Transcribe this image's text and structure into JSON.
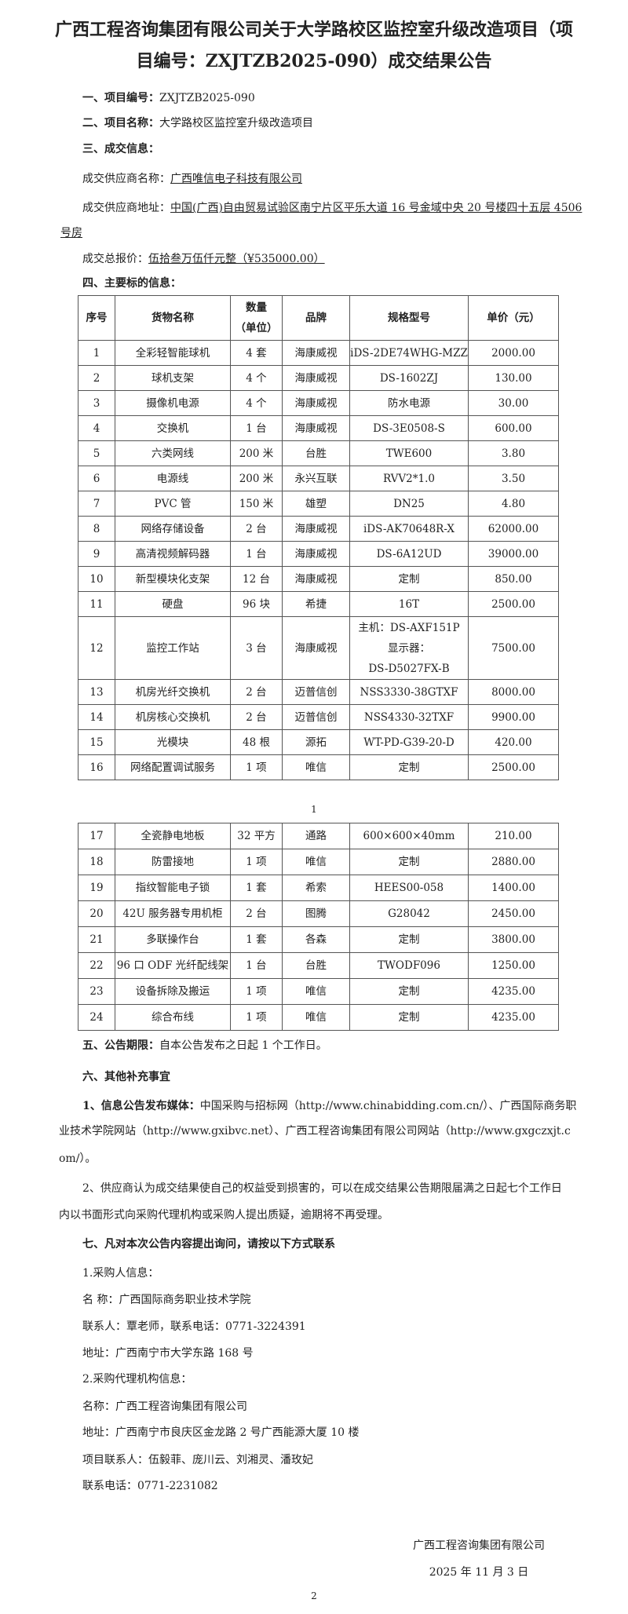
{
  "title": "广西工程咨询集团有限公司关于大学路校区监控室升级改造项目（项目编号：ZXJTZB2025-090）成交结果公告",
  "section1": {
    "label": "一、项目编号：",
    "value": "ZXJTZB2025-090"
  },
  "section2": {
    "label": "二、项目名称：",
    "value": "大学路校区监控室升级改造项目"
  },
  "section3": {
    "label": "三、成交信息：",
    "supplier_name_label": "成交供应商名称：",
    "supplier_name": "广西唯信电子科技有限公司",
    "supplier_address_label": "成交供应商地址：",
    "supplier_address_1": "中国(广西)自由贸易试验区南宁片区平乐大道 16 号金域中央 20 号楼四十五层 4506",
    "supplier_address_2": "号房",
    "total_label": "成交总报价：",
    "total_value": "伍拾叁万伍仟元整（¥535000.00）"
  },
  "section4": {
    "label": "四、主要标的信息：",
    "headers": [
      "序号",
      "货物名称",
      "数量\n（单位）",
      "品牌",
      "规格型号",
      "单价（元）"
    ],
    "rows_page1": [
      [
        "1",
        "全彩轻智能球机",
        "4 套",
        "海康威视",
        "iDS-2DE74WHG-MZZ",
        "2000.00"
      ],
      [
        "2",
        "球机支架",
        "4 个",
        "海康威视",
        "DS-1602ZJ",
        "130.00"
      ],
      [
        "3",
        "摄像机电源",
        "4 个",
        "海康威视",
        "防水电源",
        "30.00"
      ],
      [
        "4",
        "交换机",
        "1 台",
        "海康威视",
        "DS-3E0508-S",
        "600.00"
      ],
      [
        "5",
        "六类网线",
        "200 米",
        "台胜",
        "TWE600",
        "3.80"
      ],
      [
        "6",
        "电源线",
        "200 米",
        "永兴互联",
        "RVV2*1.0",
        "3.50"
      ],
      [
        "7",
        "PVC 管",
        "150 米",
        "雄塑",
        "DN25",
        "4.80"
      ],
      [
        "8",
        "网络存储设备",
        "2 台",
        "海康威视",
        "iDS-AK70648R-X",
        "62000.00"
      ],
      [
        "9",
        "高清视频解码器",
        "1 台",
        "海康威视",
        "DS-6A12UD",
        "39000.00"
      ],
      [
        "10",
        "新型模块化支架",
        "12 台",
        "海康威视",
        "定制",
        "850.00"
      ],
      [
        "11",
        "硬盘",
        "96 块",
        "希捷",
        "16T",
        "2500.00"
      ],
      [
        "12",
        "监控工作站",
        "3 台",
        "海康威视",
        "主机：DS-AXF151P\n显示器：\nDS-D5027FX-B",
        "7500.00"
      ],
      [
        "13",
        "机房光纤交换机",
        "2 台",
        "迈普信创",
        "NSS3330-38GTXF",
        "8000.00"
      ],
      [
        "14",
        "机房核心交换机",
        "2 台",
        "迈普信创",
        "NSS4330-32TXF",
        "9900.00"
      ],
      [
        "15",
        "光模块",
        "48 根",
        "源拓",
        "WT-PD-G39-20-D",
        "420.00"
      ],
      [
        "16",
        "网络配置调试服务",
        "1 项",
        "唯信",
        "定制",
        "2500.00"
      ]
    ],
    "rows_page2": [
      [
        "17",
        "全瓷静电地板",
        "32 平方",
        "通路",
        "600×600×40mm",
        "210.00"
      ],
      [
        "18",
        "防雷接地",
        "1 项",
        "唯信",
        "定制",
        "2880.00"
      ],
      [
        "19",
        "指纹智能电子锁",
        "1 套",
        "希索",
        "HEES00-058",
        "1400.00"
      ],
      [
        "20",
        "42U 服务器专用机柜",
        "2 台",
        "图腾",
        "G28042",
        "2450.00"
      ],
      [
        "21",
        "多联操作台",
        "1 套",
        "各森",
        "定制",
        "3800.00"
      ],
      [
        "22",
        "96 口 ODF 光纤配线架",
        "1 台",
        "台胜",
        "TWODF096",
        "1250.00"
      ],
      [
        "23",
        "设备拆除及搬运",
        "1 项",
        "唯信",
        "定制",
        "4235.00"
      ],
      [
        "24",
        "综合布线",
        "1 项",
        "唯信",
        "定制",
        "4235.00"
      ]
    ]
  },
  "page1_number": "1",
  "section5": {
    "label": "五、公告期限：",
    "value": "自本公告发布之日起 1 个工作日。"
  },
  "section6": {
    "label": "六、其他补充事宜",
    "p1_label": "1、信息公告发布媒体：",
    "p1_line1": "中国采购与招标网（http://www.chinabidding.com.cn/）、广西国际商务职",
    "p1_line2": "业技术学院网站（http://www.gxibvc.net）、广西工程咨询集团有限公司网站（http://www.gxgczxjt.c",
    "p1_line3": "om/）。",
    "p2_line1": "2、供应商认为成交结果使自己的权益受到损害的，可以在成交结果公告期限届满之日起七个工作日",
    "p2_line2": "内以书面形式向采购代理机构或采购人提出质疑，逾期将不再受理。"
  },
  "section7": {
    "label": "七、凡对本次公告内容提出询问，请按以下方式联系",
    "buyer_heading": "1.采购人信息：",
    "buyer_name": "名 称：广西国际商务职业技术学院",
    "buyer_contact": "联系人：覃老师，联系电话：0771-3224391",
    "buyer_address": "地址：广西南宁市大学东路 168 号",
    "agency_heading": "2.采购代理机构信息：",
    "agency_name": "名称：广西工程咨询集团有限公司",
    "agency_address": "地址：广西南宁市良庆区金龙路 2 号广西能源大厦 10 楼",
    "agency_contacts": "项目联系人：伍毅菲、庞川云、刘湘灵、潘玫妃",
    "agency_phone": "联系电话：0771-2231082"
  },
  "signature": {
    "org": "广西工程咨询集团有限公司",
    "date": "2025 年 11 月 3 日"
  },
  "page2_number": "2"
}
